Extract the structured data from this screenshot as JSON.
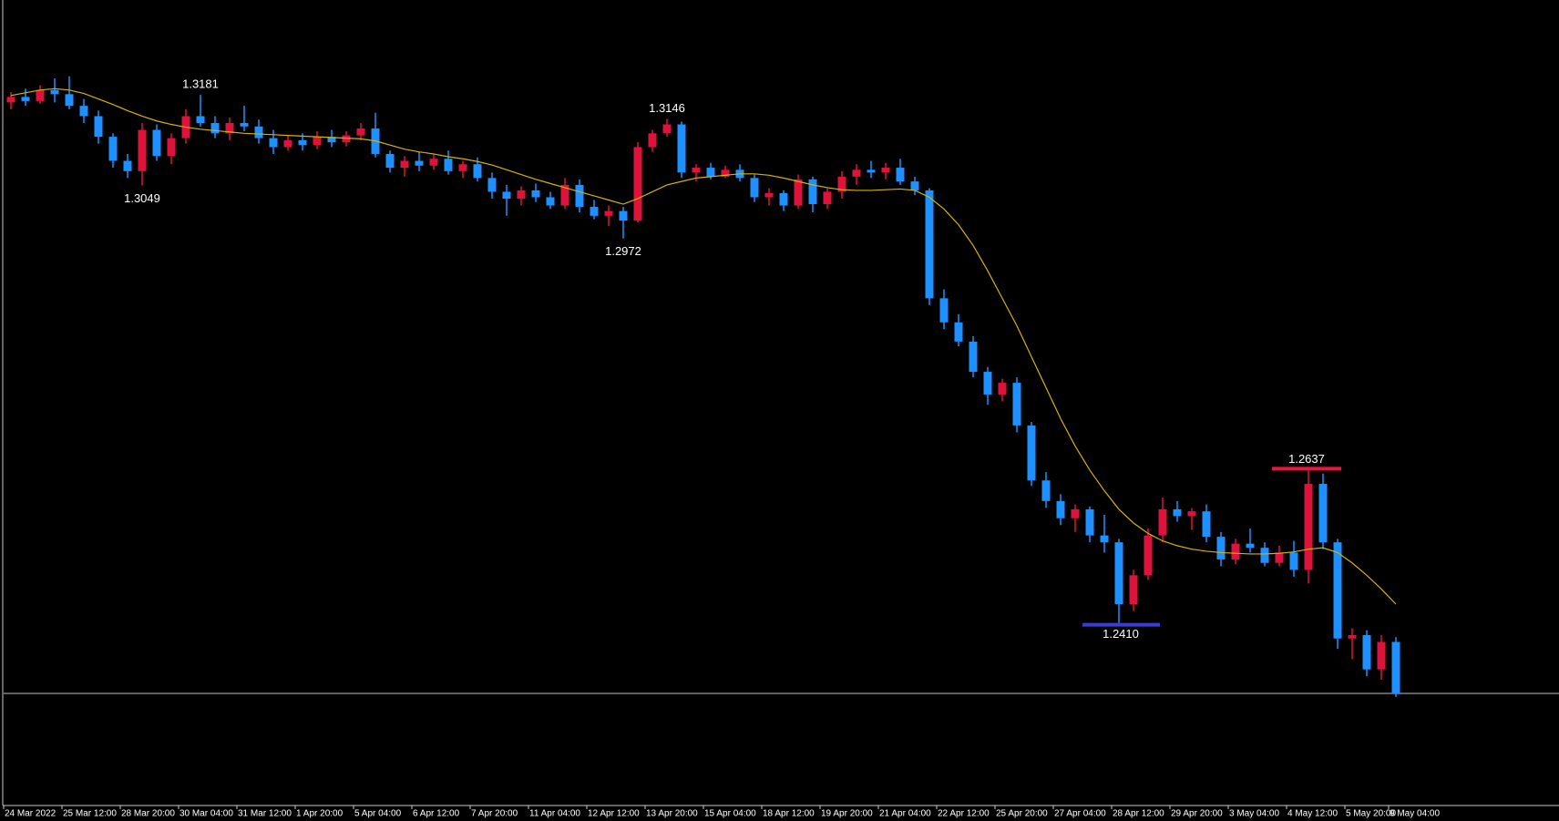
{
  "chart_data": {
    "type": "candlestick",
    "up_color": "#dc143c",
    "down_color": "#1e90ff",
    "ylim": [
      1.2147,
      1.3319
    ],
    "categories": [
      "24 Mar 2022",
      null,
      null,
      null,
      "25 Mar 12:00",
      null,
      null,
      null,
      "28 Mar 20:00",
      null,
      null,
      null,
      "30 Mar 04:00",
      null,
      null,
      null,
      "31 Mar 12:00",
      null,
      null,
      null,
      "1 Apr 20:00",
      null,
      null,
      null,
      "5 Apr 04:00",
      null,
      null,
      null,
      "6 Apr 12:00",
      null,
      null,
      null,
      "7 Apr 20:00",
      null,
      null,
      null,
      "11 Apr 04:00",
      null,
      null,
      null,
      "12 Apr 12:00",
      null,
      null,
      null,
      "13 Apr 20:00",
      null,
      null,
      null,
      "15 Apr 04:00",
      null,
      null,
      null,
      "18 Apr 12:00",
      null,
      null,
      null,
      "19 Apr 20:00",
      null,
      null,
      null,
      "21 Apr 04:00",
      null,
      null,
      null,
      "22 Apr 12:00",
      null,
      null,
      null,
      "25 Apr 20:00",
      null,
      null,
      null,
      "27 Apr 04:00",
      null,
      null,
      null,
      "28 Apr 12:00",
      null,
      null,
      null,
      "29 Apr 20:00",
      null,
      null,
      null,
      "3 May 04:00",
      null,
      null,
      null,
      "4 May 12:00",
      null,
      null,
      null,
      "5 May 20:00",
      null,
      null,
      "9 May 04:00"
    ],
    "open": [
      1.317,
      1.3178,
      1.3172,
      1.3188,
      1.3182,
      1.3165,
      1.315,
      1.312,
      1.3085,
      1.307,
      1.313,
      1.3092,
      1.3118,
      1.315,
      1.314,
      1.3125,
      1.314,
      1.3135,
      1.3118,
      1.3105,
      1.3115,
      1.3108,
      1.312,
      1.3112,
      1.3122,
      1.3132,
      1.3095,
      1.3075,
      1.3085,
      1.3078,
      1.3088,
      1.307,
      1.308,
      1.306,
      1.304,
      1.303,
      1.3042,
      1.3032,
      1.302,
      1.305,
      1.3018,
      1.3005,
      1.3012,
      1.2998,
      1.3105,
      1.3125,
      1.3138,
      1.3068,
      1.3075,
      1.3062,
      1.3072,
      1.306,
      1.3032,
      1.3038,
      1.302,
      1.3058,
      1.3022,
      1.304,
      1.3062,
      1.3072,
      1.3068,
      1.3075,
      1.3055,
      1.3042,
      1.2885,
      1.285,
      1.2822,
      1.2778,
      1.2745,
      1.2762,
      1.27,
      1.262,
      1.259,
      1.2565,
      1.2578,
      1.254,
      1.253,
      1.244,
      1.2482,
      1.254,
      1.2578,
      1.2568,
      1.2575,
      1.2538,
      1.2505,
      1.2528,
      1.2522,
      1.25,
      1.2515,
      1.249,
      1.2615,
      1.253,
      1.239,
      1.2395,
      1.2345,
      1.2385
    ],
    "high": [
      1.3185,
      1.319,
      1.3195,
      1.3205,
      1.3208,
      1.3175,
      1.3158,
      1.3125,
      1.3095,
      1.314,
      1.3138,
      1.3125,
      1.316,
      1.3181,
      1.315,
      1.3148,
      1.3165,
      1.3145,
      1.313,
      1.3122,
      1.3125,
      1.3128,
      1.313,
      1.3128,
      1.314,
      1.3155,
      1.31,
      1.3092,
      1.3098,
      1.3095,
      1.31,
      1.3085,
      1.309,
      1.3068,
      1.305,
      1.3048,
      1.3052,
      1.304,
      1.306,
      1.3058,
      1.3028,
      1.302,
      1.3018,
      1.3112,
      1.313,
      1.3146,
      1.3142,
      1.308,
      1.3082,
      1.3078,
      1.308,
      1.3065,
      1.3045,
      1.3042,
      1.3065,
      1.3062,
      1.3045,
      1.307,
      1.308,
      1.3085,
      1.3082,
      1.3088,
      1.3062,
      1.3045,
      1.2898,
      1.2862,
      1.283,
      1.2785,
      1.2768,
      1.277,
      1.2705,
      1.2632,
      1.26,
      1.2585,
      1.2582,
      1.257,
      1.2535,
      1.249,
      1.255,
      1.2595,
      1.259,
      1.258,
      1.2585,
      1.2545,
      1.2535,
      1.255,
      1.253,
      1.2525,
      1.2532,
      1.2637,
      1.263,
      1.2535,
      1.2405,
      1.2402,
      1.2395,
      1.2392
    ],
    "low": [
      1.316,
      1.3165,
      1.3168,
      1.317,
      1.316,
      1.314,
      1.311,
      1.3075,
      1.306,
      1.3049,
      1.3085,
      1.308,
      1.311,
      1.3135,
      1.3118,
      1.3115,
      1.3128,
      1.311,
      1.3095,
      1.31,
      1.31,
      1.3102,
      1.3105,
      1.3106,
      1.3115,
      1.309,
      1.3068,
      1.3062,
      1.307,
      1.3072,
      1.3065,
      1.306,
      1.3055,
      1.303,
      1.3005,
      1.302,
      1.3025,
      1.3015,
      1.3015,
      1.301,
      1.3,
      1.299,
      1.2972,
      1.2995,
      1.3098,
      1.312,
      1.306,
      1.3055,
      1.3058,
      1.306,
      1.3055,
      1.3025,
      1.302,
      1.3012,
      1.3015,
      1.301,
      1.3015,
      1.303,
      1.305,
      1.306,
      1.3058,
      1.305,
      1.3035,
      1.2875,
      1.284,
      1.2815,
      1.277,
      1.273,
      1.2735,
      1.269,
      1.2612,
      1.258,
      1.2555,
      1.2545,
      1.253,
      1.2515,
      1.241,
      1.243,
      1.2475,
      1.253,
      1.256,
      1.2548,
      1.253,
      1.2495,
      1.2498,
      1.2515,
      1.2495,
      1.2495,
      1.248,
      1.247,
      1.252,
      1.2375,
      1.236,
      1.2335,
      1.233,
      1.2305
    ],
    "close": [
      1.3178,
      1.3172,
      1.3188,
      1.3182,
      1.3165,
      1.315,
      1.312,
      1.3085,
      1.307,
      1.313,
      1.3092,
      1.3118,
      1.315,
      1.314,
      1.3125,
      1.314,
      1.3135,
      1.3118,
      1.3105,
      1.3115,
      1.3108,
      1.312,
      1.3112,
      1.3122,
      1.3132,
      1.3095,
      1.3075,
      1.3085,
      1.3078,
      1.3088,
      1.307,
      1.308,
      1.306,
      1.304,
      1.303,
      1.3042,
      1.3032,
      1.302,
      1.305,
      1.3018,
      1.3005,
      1.3012,
      1.2998,
      1.3105,
      1.3125,
      1.3138,
      1.3068,
      1.3075,
      1.3062,
      1.3072,
      1.306,
      1.3032,
      1.3038,
      1.302,
      1.3058,
      1.3022,
      1.304,
      1.3062,
      1.3072,
      1.3068,
      1.3075,
      1.3055,
      1.3042,
      1.2885,
      1.285,
      1.2822,
      1.2778,
      1.2745,
      1.2762,
      1.27,
      1.262,
      1.259,
      1.2565,
      1.2578,
      1.254,
      1.253,
      1.244,
      1.2482,
      1.254,
      1.2578,
      1.2568,
      1.2575,
      1.2538,
      1.2505,
      1.2528,
      1.2522,
      1.25,
      1.2515,
      1.249,
      1.2615,
      1.253,
      1.239,
      1.2395,
      1.2345,
      1.2385,
      1.231
    ],
    "ma": {
      "color": "#d4b106",
      "values": [
        1.318,
        1.3184,
        1.3188,
        1.319,
        1.3188,
        1.3183,
        1.3175,
        1.3167,
        1.3158,
        1.315,
        1.3143,
        1.3138,
        1.3134,
        1.3131,
        1.3129,
        1.3127,
        1.3125,
        1.3124,
        1.3123,
        1.3122,
        1.3121,
        1.312,
        1.3119,
        1.3118,
        1.3117,
        1.3114,
        1.3108,
        1.3102,
        1.3098,
        1.3095,
        1.3091,
        1.3088,
        1.3084,
        1.3079,
        1.3072,
        1.3065,
        1.3058,
        1.3052,
        1.3046,
        1.304,
        1.3034,
        1.3028,
        1.3022,
        1.303,
        1.304,
        1.305,
        1.3055,
        1.306,
        1.3062,
        1.3064,
        1.3066,
        1.3066,
        1.3064,
        1.306,
        1.3055,
        1.305,
        1.3046,
        1.3043,
        1.3042,
        1.3042,
        1.3043,
        1.3044,
        1.3042,
        1.3032,
        1.3015,
        1.2992,
        1.2962,
        1.2925,
        1.2885,
        1.2845,
        1.28,
        1.2755,
        1.271,
        1.267,
        1.2635,
        1.2605,
        1.2578,
        1.2558,
        1.2543,
        1.2532,
        1.2525,
        1.252,
        1.2517,
        1.2515,
        1.2514,
        1.2513,
        1.2513,
        1.2514,
        1.2516,
        1.252,
        1.2522,
        1.2515,
        1.25,
        1.2482,
        1.2462,
        1.244
      ]
    },
    "high_labels": [
      1.3181,
      1.3146
    ],
    "low_labels": [
      1.3049,
      1.2972
    ],
    "resistance": {
      "value": 1.2637,
      "color": "#e8173f"
    },
    "support": {
      "value": 1.241,
      "label": "1.2410",
      "color": "#3c3cd0"
    },
    "current_price": {
      "value": 1.231,
      "color": "#c0c0c0"
    }
  }
}
